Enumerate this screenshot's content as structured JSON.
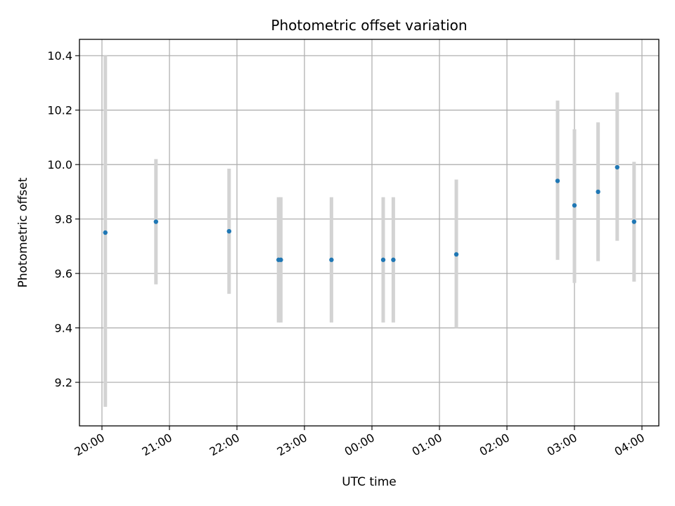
{
  "chart_data": {
    "type": "scatter",
    "title": "Photometric offset variation",
    "xlabel": "UTC time",
    "ylabel": "Photometric offset",
    "x_axis": {
      "kind": "time",
      "range": [
        "19:40",
        "04:15"
      ],
      "ticks": [
        "20:00",
        "21:00",
        "22:00",
        "23:00",
        "00:00",
        "01:00",
        "02:00",
        "03:00",
        "04:00"
      ]
    },
    "y_axis": {
      "range": [
        9.04,
        10.46
      ],
      "ticks": [
        9.2,
        9.4,
        9.6,
        9.8,
        10.0,
        10.2,
        10.4
      ],
      "tick_labels": [
        "9.2",
        "9.4",
        "9.6",
        "9.8",
        "10.0",
        "10.2",
        "10.4"
      ]
    },
    "grid": true,
    "colors": {
      "points": "#1f77b4",
      "error_bars": "#d3d3d3"
    },
    "points": [
      {
        "time": "20:03",
        "y": 9.75,
        "ylow": 9.11,
        "yhigh": 10.4
      },
      {
        "time": "20:48",
        "y": 9.79,
        "ylow": 9.56,
        "yhigh": 10.02
      },
      {
        "time": "21:53",
        "y": 9.755,
        "ylow": 9.525,
        "yhigh": 9.985
      },
      {
        "time": "22:37",
        "y": 9.65,
        "ylow": 9.42,
        "yhigh": 9.88
      },
      {
        "time": "22:39",
        "y": 9.65,
        "ylow": 9.42,
        "yhigh": 9.88
      },
      {
        "time": "23:24",
        "y": 9.65,
        "ylow": 9.42,
        "yhigh": 9.88
      },
      {
        "time": "00:10",
        "y": 9.65,
        "ylow": 9.42,
        "yhigh": 9.88
      },
      {
        "time": "00:19",
        "y": 9.65,
        "ylow": 9.42,
        "yhigh": 9.88
      },
      {
        "time": "01:15",
        "y": 9.67,
        "ylow": 9.4,
        "yhigh": 9.945
      },
      {
        "time": "02:45",
        "y": 9.94,
        "ylow": 9.65,
        "yhigh": 10.235
      },
      {
        "time": "03:00",
        "y": 9.85,
        "ylow": 9.565,
        "yhigh": 10.13
      },
      {
        "time": "03:21",
        "y": 9.9,
        "ylow": 9.645,
        "yhigh": 10.155
      },
      {
        "time": "03:38",
        "y": 9.99,
        "ylow": 9.72,
        "yhigh": 10.265
      },
      {
        "time": "03:53",
        "y": 9.79,
        "ylow": 9.57,
        "yhigh": 10.01
      }
    ]
  }
}
